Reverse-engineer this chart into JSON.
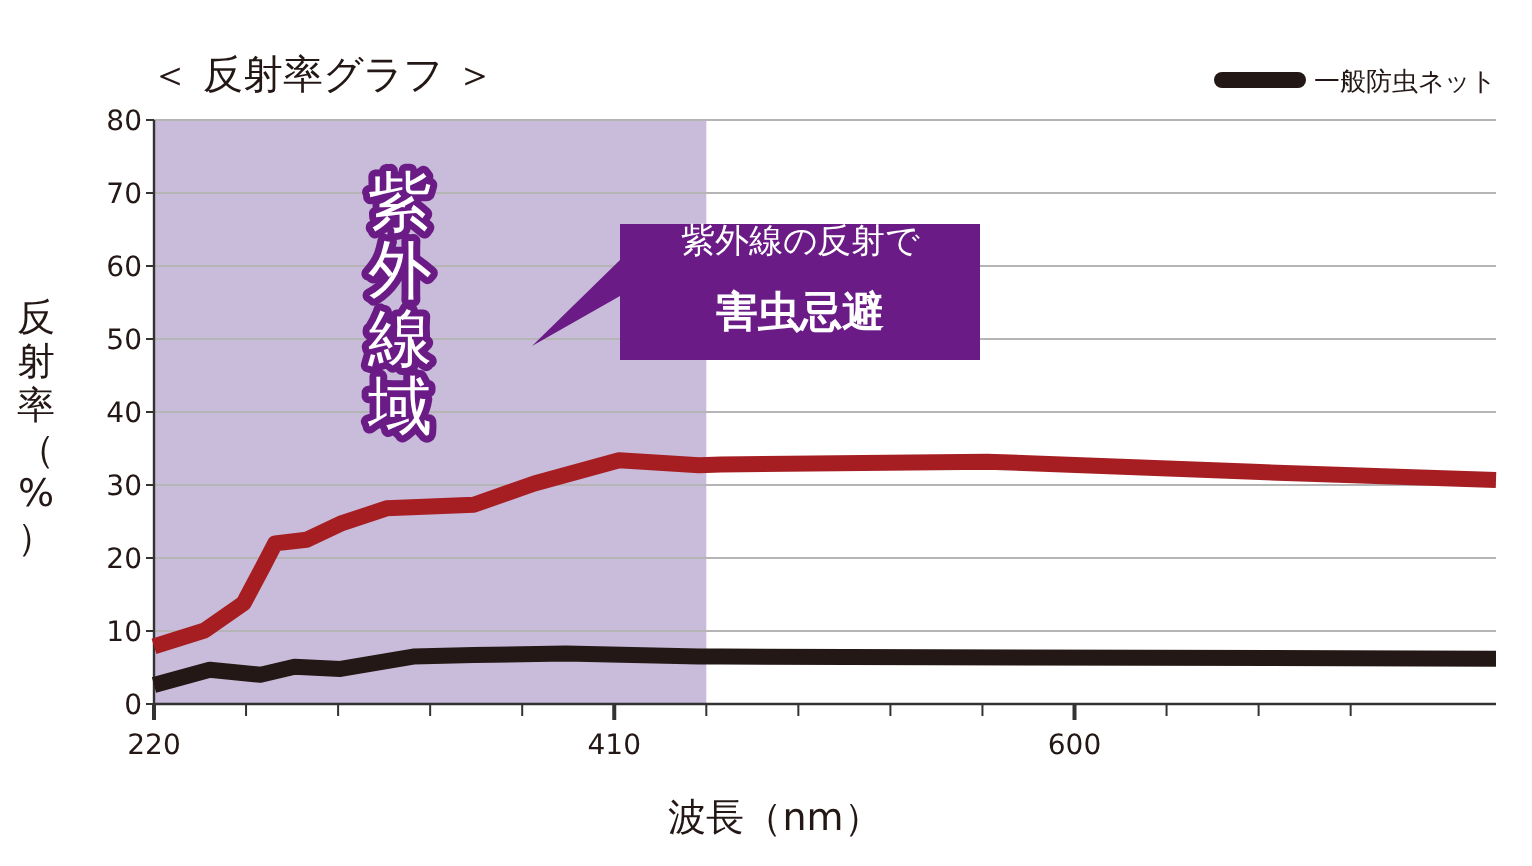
{
  "chart_data": {
    "type": "line",
    "title": "＜ 反射率グラフ ＞",
    "xlabel": "波長（nm）",
    "ylabel": "反射率（%）",
    "xlim": [
      220,
      774
    ],
    "ylim": [
      0,
      80
    ],
    "xticks": [
      220,
      {
        "value": 258,
        "label": null
      },
      {
        "value": 296,
        "label": null
      },
      {
        "value": 334,
        "label": null
      },
      {
        "value": 372,
        "label": null
      },
      410,
      {
        "value": 448,
        "label": null
      },
      {
        "value": 486,
        "label": null
      },
      {
        "value": 524,
        "label": null
      },
      {
        "value": 562,
        "label": null
      },
      600,
      {
        "value": 638,
        "label": null
      },
      {
        "value": 676,
        "label": null
      },
      {
        "value": 714,
        "label": null
      }
    ],
    "yticks": [
      0,
      10,
      20,
      30,
      40,
      50,
      60,
      70,
      80
    ],
    "grid": "y",
    "legend": "top right",
    "line_style": "solid",
    "marker": "none",
    "bands": [
      {
        "axis": "x",
        "from": 220,
        "to": 448,
        "label": "紫外線域",
        "color": "#c9bbda"
      }
    ],
    "annotations": [
      "紫外線の反射で",
      "害虫忌避"
    ],
    "series": [
      {
        "color": "#a61e22",
        "x": [
          220,
          241,
          257,
          265,
          270,
          283,
          297,
          316,
          352,
          377,
          412,
          445,
          454,
          564,
          674,
          774
        ],
        "values": [
          7.9,
          10.1,
          13.8,
          18.8,
          22.0,
          22.5,
          24.7,
          26.8,
          27.3,
          30.2,
          33.4,
          32.7,
          32.8,
          33.2,
          31.8,
          30.7
        ]
      },
      {
        "name": "一般防虫ネット",
        "color": "#231815",
        "x": [
          220,
          243,
          264,
          278,
          297,
          327,
          352,
          390,
          445,
          454,
          774
        ],
        "values": [
          2.6,
          4.7,
          4.0,
          5.1,
          4.8,
          6.5,
          6.7,
          6.9,
          6.5,
          6.5,
          6.2
        ]
      }
    ]
  }
}
